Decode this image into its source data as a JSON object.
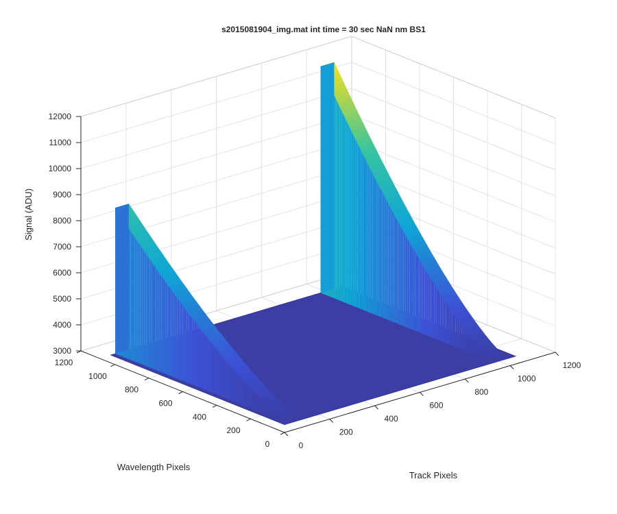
{
  "chart_data": {
    "type": "surface",
    "title": "s2015081904_img.mat int time = 30 sec  NaN nm BS1",
    "xlabel": "Track Pixels",
    "ylabel": "Wavelength Pixels",
    "zlabel": "Signal (ADU)",
    "xlim": [
      0,
      1200
    ],
    "ylim": [
      0,
      1200
    ],
    "zlim": [
      3000,
      12000
    ],
    "x_ticks": [
      "0",
      "200",
      "400",
      "600",
      "800",
      "1000",
      "1200"
    ],
    "y_ticks": [
      "0",
      "200",
      "400",
      "600",
      "800",
      "1000",
      "1200"
    ],
    "z_ticks": [
      "3000",
      "4000",
      "5000",
      "6000",
      "7000",
      "8000",
      "9000",
      "10000",
      "11000",
      "12000"
    ],
    "grid": true,
    "colormap": "parula",
    "colors": {
      "baseline": "#3a3a9a",
      "low": "#3d51d6",
      "mid": "#0fa6d6",
      "high": "#37c4a0",
      "peak": "#f8e01d"
    },
    "data_extent": {
      "x": [
        0,
        1024
      ],
      "y": [
        0,
        1024
      ]
    },
    "baseline_level": 3300,
    "ridges": [
      {
        "name": "",
        "x_center": 50,
        "x_width": 60,
        "peak_y": 1024,
        "peak_signal": 8900,
        "end_y": 0,
        "end_signal": 3300
      },
      {
        "name": "",
        "x_center": 960,
        "x_width": 60,
        "peak_y": 1024,
        "peak_signal": 12000,
        "end_y": 0,
        "end_signal": 3300
      }
    ]
  }
}
